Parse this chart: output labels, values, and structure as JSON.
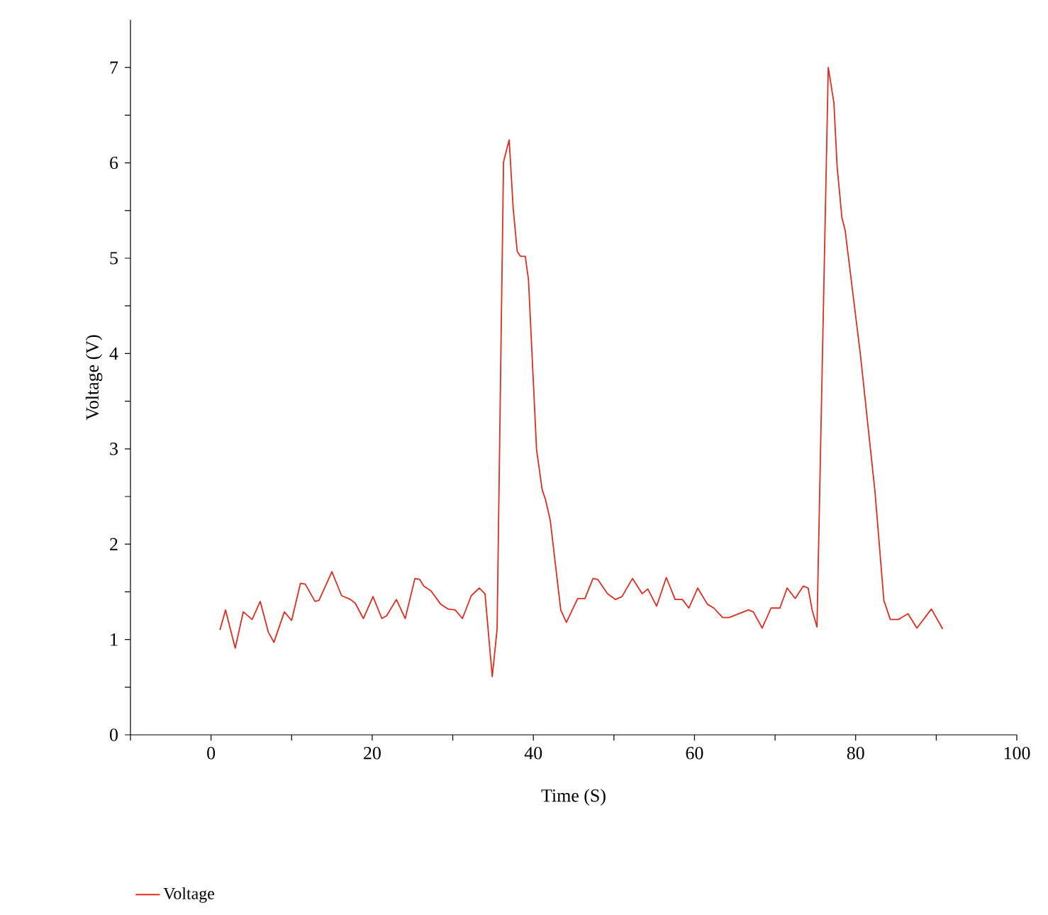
{
  "chart_data": {
    "type": "line",
    "xlabel": "Time (S)",
    "ylabel": "Voltage (V)",
    "xlim": [
      -10,
      100
    ],
    "ylim": [
      0,
      7.5
    ],
    "xticks": [
      {
        "value": -10,
        "label": null
      },
      0,
      {
        "value": 10,
        "label": null
      },
      20,
      {
        "value": 30,
        "label": null
      },
      40,
      {
        "value": 50,
        "label": null
      },
      60,
      {
        "value": 70,
        "label": null
      },
      80,
      {
        "value": 90,
        "label": null
      },
      100
    ],
    "yticks": [
      0,
      {
        "value": 0.5,
        "label": null
      },
      1,
      {
        "value": 1.5,
        "label": null
      },
      2,
      {
        "value": 2.5,
        "label": null
      },
      3,
      {
        "value": 3.5,
        "label": null
      },
      4,
      {
        "value": 4.5,
        "label": null
      },
      5,
      {
        "value": 5.5,
        "label": null
      },
      6,
      {
        "value": 6.5,
        "label": null
      },
      7
    ],
    "grid": false,
    "legend": "bottom left",
    "line_style": "solid",
    "x": [
      1.1,
      1.8,
      3.0,
      4.0,
      5.1,
      6.1,
      7.1,
      7.8,
      9.1,
      10.0,
      11.1,
      11.7,
      12.9,
      13.4,
      15.0,
      16.2,
      17.3,
      17.9,
      18.9,
      20.1,
      21.2,
      21.8,
      23.0,
      24.1,
      25.3,
      25.9,
      26.4,
      27.3,
      28.5,
      29.4,
      30.3,
      31.2,
      32.3,
      33.3,
      34.0,
      34.9,
      35.5,
      36.3,
      37.0,
      37.5,
      38.0,
      38.4,
      39.0,
      39.4,
      40.4,
      41.1,
      41.5,
      42.1,
      43.4,
      44.1,
      45.5,
      46.4,
      47.4,
      48.0,
      49.2,
      50.2,
      51.0,
      52.3,
      53.5,
      54.2,
      55.3,
      56.5,
      57.6,
      58.5,
      59.3,
      60.4,
      61.6,
      62.4,
      63.5,
      64.3,
      66.7,
      67.3,
      68.4,
      69.5,
      70.6,
      71.5,
      72.5,
      73.5,
      74.1,
      74.6,
      75.2,
      76.6,
      77.3,
      77.7,
      78.3,
      78.7,
      80.6,
      82.4,
      83.5,
      84.3,
      85.3,
      86.5,
      87.6,
      89.4,
      90.8
    ],
    "series": [
      {
        "name": "Voltage",
        "color": "#e32b1e",
        "values": [
          1.1,
          1.31,
          0.91,
          1.29,
          1.21,
          1.4,
          1.08,
          0.97,
          1.29,
          1.2,
          1.59,
          1.58,
          1.4,
          1.41,
          1.71,
          1.46,
          1.42,
          1.38,
          1.22,
          1.45,
          1.22,
          1.25,
          1.42,
          1.22,
          1.64,
          1.63,
          1.56,
          1.51,
          1.37,
          1.32,
          1.31,
          1.22,
          1.46,
          1.54,
          1.48,
          0.61,
          1.11,
          6.01,
          6.24,
          5.52,
          5.07,
          5.02,
          5.02,
          4.77,
          2.99,
          2.57,
          2.47,
          2.25,
          1.31,
          1.18,
          1.43,
          1.43,
          1.64,
          1.63,
          1.48,
          1.42,
          1.45,
          1.64,
          1.48,
          1.53,
          1.35,
          1.65,
          1.42,
          1.42,
          1.33,
          1.54,
          1.37,
          1.33,
          1.23,
          1.23,
          1.31,
          1.29,
          1.12,
          1.33,
          1.33,
          1.54,
          1.43,
          1.56,
          1.54,
          1.31,
          1.13,
          7.0,
          6.63,
          5.96,
          5.42,
          5.29,
          3.98,
          2.55,
          1.41,
          1.21,
          1.21,
          1.27,
          1.12,
          1.32,
          1.11
        ]
      }
    ]
  }
}
